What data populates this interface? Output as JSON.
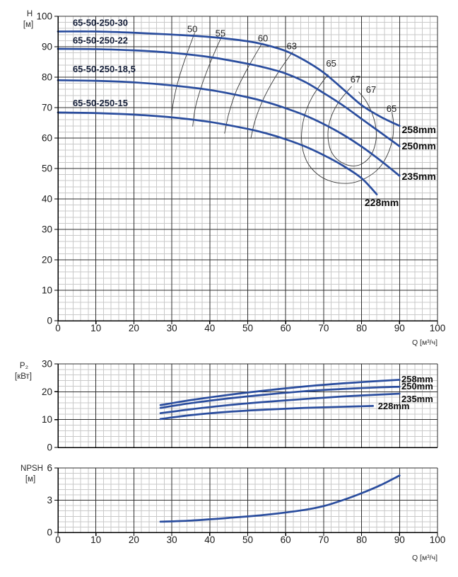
{
  "colors": {
    "curve": "#2a4d9e",
    "grid_minor": "#c9c9c9",
    "grid_major": "#2e2e2e",
    "axis": "#000000",
    "contour": "#3a3a3a"
  },
  "chart_data": [
    {
      "id": "head",
      "type": "line",
      "title": "",
      "y_title": "H",
      "y_unit": "[м]",
      "x_label": "Q [м³/ч]",
      "xlim": [
        0,
        100
      ],
      "ylim": [
        0,
        100
      ],
      "xticks": [
        0,
        10,
        20,
        30,
        40,
        50,
        60,
        70,
        80,
        90,
        100
      ],
      "yticks": [
        0,
        10,
        20,
        30,
        40,
        50,
        60,
        70,
        80,
        90,
        100
      ],
      "x_minor_step": 2,
      "y_minor_step": 2,
      "show_x_tick_labels": true,
      "series": [
        {
          "name": "258mm",
          "model": "65-50-250-30",
          "points": [
            [
              0,
              95
            ],
            [
              10,
              95
            ],
            [
              20,
              94.6
            ],
            [
              30,
              94
            ],
            [
              40,
              93.2
            ],
            [
              50,
              91.8
            ],
            [
              55,
              90.5
            ],
            [
              60,
              88.6
            ],
            [
              65,
              85.5
            ],
            [
              70,
              81.5
            ],
            [
              75,
              76.2
            ],
            [
              80,
              70.8
            ],
            [
              85,
              67
            ],
            [
              90,
              64
            ]
          ]
        },
        {
          "name": "250mm",
          "model": "65-50-250-22",
          "points": [
            [
              0,
              89.3
            ],
            [
              10,
              89.2
            ],
            [
              20,
              88.8
            ],
            [
              30,
              88
            ],
            [
              40,
              86.6
            ],
            [
              50,
              84.4
            ],
            [
              55,
              83
            ],
            [
              60,
              81.2
            ],
            [
              65,
              78.5
            ],
            [
              70,
              74.8
            ],
            [
              75,
              70.8
            ],
            [
              80,
              66.3
            ],
            [
              85,
              61.8
            ],
            [
              90,
              57.3
            ]
          ]
        },
        {
          "name": "235mm",
          "model": "65-50-250-18,5",
          "points": [
            [
              0,
              79
            ],
            [
              10,
              78.8
            ],
            [
              20,
              78.3
            ],
            [
              30,
              77.3
            ],
            [
              40,
              75.8
            ],
            [
              50,
              73.4
            ],
            [
              55,
              71.8
            ],
            [
              60,
              69.8
            ],
            [
              65,
              67.5
            ],
            [
              70,
              64.6
            ],
            [
              75,
              61.2
            ],
            [
              80,
              57.2
            ],
            [
              85,
              52.6
            ],
            [
              90,
              47.6
            ]
          ]
        },
        {
          "name": "228mm",
          "model": "65-50-250-15",
          "points": [
            [
              0,
              68.4
            ],
            [
              10,
              68.2
            ],
            [
              20,
              67.7
            ],
            [
              30,
              66.8
            ],
            [
              40,
              65.3
            ],
            [
              50,
              63
            ],
            [
              55,
              61.5
            ],
            [
              60,
              59.6
            ],
            [
              65,
              57.3
            ],
            [
              70,
              54.4
            ],
            [
              75,
              51
            ],
            [
              80,
              46.8
            ],
            [
              84,
              41.5
            ]
          ]
        }
      ],
      "model_labels": [
        {
          "text": "65-50-250-30",
          "x": 3.9,
          "y": 96.9
        },
        {
          "text": "65-50-250-22",
          "x": 3.9,
          "y": 91.0
        },
        {
          "text": "65-50-250-18,5",
          "x": 3.9,
          "y": 81.6
        },
        {
          "text": "65-50-250-15",
          "x": 3.9,
          "y": 70.5
        }
      ],
      "diameter_labels": [
        {
          "text": "258mm",
          "x": 90.6,
          "y": 61.6
        },
        {
          "text": "250mm",
          "x": 90.6,
          "y": 56.3
        },
        {
          "text": "235mm",
          "x": 90.6,
          "y": 46.3
        },
        {
          "text": "228mm",
          "x": 80.8,
          "y": 37.7
        }
      ],
      "efficiency_contours": [
        {
          "label": "50",
          "lx": 35.4,
          "ly": 94.8,
          "points": [
            [
              36,
              94.5
            ],
            [
              33.5,
              86
            ],
            [
              31.5,
              78
            ],
            [
              30.3,
              71
            ],
            [
              29.9,
              66
            ]
          ]
        },
        {
          "label": "55",
          "lx": 42.8,
          "ly": 93.4,
          "points": [
            [
              43.2,
              93.6
            ],
            [
              40.2,
              85
            ],
            [
              37.8,
              77
            ],
            [
              36.2,
              70
            ],
            [
              35.5,
              63.8
            ]
          ]
        },
        {
          "label": "60",
          "lx": 54.0,
          "ly": 91.8,
          "points": [
            [
              53.8,
              91.2
            ],
            [
              50,
              83
            ],
            [
              47,
              75.5
            ],
            [
              45,
              68
            ],
            [
              43.9,
              61.5
            ]
          ]
        },
        {
          "label": "63",
          "lx": 61.6,
          "ly": 89.2,
          "points": [
            [
              61.8,
              88.3
            ],
            [
              57.5,
              80.5
            ],
            [
              54.2,
              73
            ],
            [
              52,
              66
            ],
            [
              50.8,
              59.8
            ]
          ]
        },
        {
          "label": "65",
          "lx": 72.0,
          "ly": 83.5,
          "points": [
            [
              71.2,
              81
            ],
            [
              67,
              73.5
            ],
            [
              64.8,
              66.5
            ],
            [
              64.2,
              59
            ],
            [
              65.5,
              52.5
            ],
            [
              68.5,
              48
            ],
            [
              72.5,
              45.6
            ],
            [
              77,
              45.2
            ],
            [
              81,
              46.8
            ],
            [
              84.5,
              50
            ],
            [
              86.8,
              54.5
            ],
            [
              88.2,
              60
            ],
            [
              88.4,
              65
            ],
            [
              88,
              68.5
            ]
          ]
        },
        {
          "label": "67",
          "lx": 78.4,
          "ly": 78.2,
          "points": [
            [
              77.4,
              77
            ],
            [
              73.8,
              71.5
            ],
            [
              71.6,
              65.5
            ],
            [
              71.2,
              59.5
            ],
            [
              72.5,
              54.5
            ],
            [
              75.5,
              51.5
            ],
            [
              79,
              51
            ],
            [
              82,
              53.5
            ],
            [
              83.6,
              58
            ],
            [
              83.8,
              63
            ],
            [
              82.8,
              68
            ],
            [
              81,
              72.5
            ],
            [
              79.2,
              75.2
            ]
          ]
        },
        {
          "label": "67",
          "lx": 82.5,
          "ly": 74.9,
          "points": []
        },
        {
          "label": "65",
          "lx": 87.9,
          "ly": 68.6,
          "points": []
        }
      ]
    },
    {
      "id": "p2",
      "type": "line",
      "y_title": "P₂",
      "y_unit": "[кВт]",
      "xlim": [
        0,
        100
      ],
      "ylim": [
        0,
        30
      ],
      "xticks": [
        0,
        10,
        20,
        30,
        40,
        50,
        60,
        70,
        80,
        90,
        100
      ],
      "yticks": [
        0,
        10,
        20,
        30
      ],
      "x_minor_step": 2,
      "y_minor_step": 2,
      "show_x_tick_labels": false,
      "series": [
        {
          "name": "258mm",
          "points": [
            [
              27,
              15.2
            ],
            [
              35,
              17
            ],
            [
              45,
              18.9
            ],
            [
              55,
              20.5
            ],
            [
              65,
              21.9
            ],
            [
              75,
              23
            ],
            [
              85,
              23.9
            ],
            [
              90,
              24.3
            ]
          ]
        },
        {
          "name": "250mm",
          "points": [
            [
              27,
              14.2
            ],
            [
              35,
              15.9
            ],
            [
              45,
              17.6
            ],
            [
              55,
              19
            ],
            [
              65,
              20.2
            ],
            [
              75,
              21
            ],
            [
              85,
              21.6
            ],
            [
              90,
              21.8
            ]
          ]
        },
        {
          "name": "235mm",
          "points": [
            [
              27,
              12.3
            ],
            [
              35,
              13.7
            ],
            [
              45,
              15.2
            ],
            [
              55,
              16.4
            ],
            [
              65,
              17.4
            ],
            [
              75,
              18.3
            ],
            [
              85,
              19
            ],
            [
              90,
              19.3
            ]
          ]
        },
        {
          "name": "228mm",
          "points": [
            [
              27,
              10.2
            ],
            [
              35,
              11.6
            ],
            [
              45,
              12.8
            ],
            [
              55,
              13.6
            ],
            [
              65,
              14.2
            ],
            [
              75,
              14.6
            ],
            [
              83,
              14.9
            ]
          ]
        }
      ],
      "diameter_labels": [
        {
          "text": "258mm",
          "x": 90.5,
          "y": 23.4
        },
        {
          "text": "250mm",
          "x": 90.5,
          "y": 20.8
        },
        {
          "text": "235mm",
          "x": 90.5,
          "y": 16.3
        },
        {
          "text": "228mm",
          "x": 84.3,
          "y": 13.7
        }
      ]
    },
    {
      "id": "npsh",
      "type": "line",
      "y_title": "NPSH",
      "y_unit": "[м]",
      "x_label": "Q [м³/ч]",
      "xlim": [
        0,
        100
      ],
      "ylim": [
        0,
        6
      ],
      "xticks": [
        0,
        10,
        20,
        30,
        40,
        50,
        60,
        70,
        80,
        90,
        100
      ],
      "yticks": [
        0,
        3,
        6
      ],
      "x_minor_step": 2,
      "y_minor_step": 0.5,
      "show_x_tick_labels": true,
      "series": [
        {
          "name": "NPSH",
          "points": [
            [
              27,
              1
            ],
            [
              35,
              1.1
            ],
            [
              45,
              1.35
            ],
            [
              55,
              1.65
            ],
            [
              65,
              2.1
            ],
            [
              70,
              2.45
            ],
            [
              75,
              3
            ],
            [
              80,
              3.65
            ],
            [
              85,
              4.4
            ],
            [
              90,
              5.3
            ]
          ]
        }
      ]
    }
  ]
}
